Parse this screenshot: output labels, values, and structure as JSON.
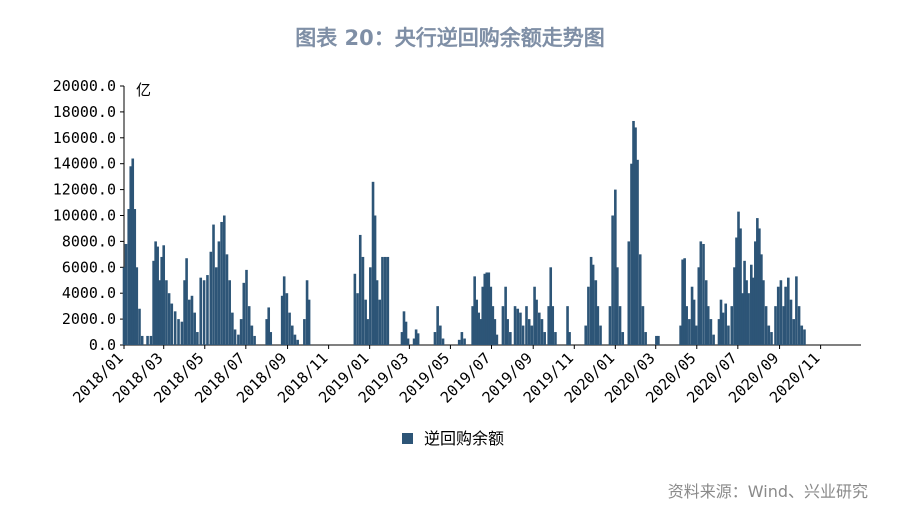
{
  "title": "图表 20：央行逆回购余额走势图",
  "source": "资料来源：Wind、兴业研究",
  "chart_data": {
    "type": "bar",
    "unit_label": "亿",
    "series_name": "逆回购余额",
    "color": "#2d5577",
    "ylim": [
      0,
      20000
    ],
    "y_ticks": [
      "0.0",
      "2000.0",
      "4000.0",
      "6000.0",
      "8000.0",
      "10000.0",
      "12000.0",
      "14000.0",
      "16000.0",
      "18000.0",
      "20000.0"
    ],
    "x_ticks": [
      "2018/01",
      "2018/03",
      "2018/05",
      "2018/07",
      "2018/09",
      "2018/11",
      "2019/01",
      "2019/03",
      "2019/05",
      "2019/07",
      "2019/09",
      "2019/11",
      "2020/01",
      "2020/03",
      "2020/05",
      "2020/07",
      "2020/09",
      "2020/11"
    ],
    "legend_position": "bottom",
    "x_start": "2018-01-01",
    "x_end": "2020-12-31",
    "points": [
      [
        "2018-01-01",
        6000
      ],
      [
        "2018-01-04",
        7800
      ],
      [
        "2018-01-08",
        10500
      ],
      [
        "2018-01-11",
        13800
      ],
      [
        "2018-01-14",
        14400
      ],
      [
        "2018-01-17",
        10500
      ],
      [
        "2018-01-20",
        6000
      ],
      [
        "2018-01-24",
        2800
      ],
      [
        "2018-01-28",
        700
      ],
      [
        "2018-02-05",
        700
      ],
      [
        "2018-02-10",
        700
      ],
      [
        "2018-02-14",
        6500
      ],
      [
        "2018-02-17",
        8000
      ],
      [
        "2018-02-20",
        7600
      ],
      [
        "2018-02-23",
        5000
      ],
      [
        "2018-02-26",
        6800
      ],
      [
        "2018-03-01",
        7700
      ],
      [
        "2018-03-05",
        5000
      ],
      [
        "2018-03-09",
        4000
      ],
      [
        "2018-03-13",
        3200
      ],
      [
        "2018-03-18",
        2600
      ],
      [
        "2018-03-23",
        2000
      ],
      [
        "2018-03-28",
        1800
      ],
      [
        "2018-04-01",
        5000
      ],
      [
        "2018-04-04",
        6700
      ],
      [
        "2018-04-08",
        3500
      ],
      [
        "2018-04-12",
        3800
      ],
      [
        "2018-04-16",
        2500
      ],
      [
        "2018-04-20",
        1000
      ],
      [
        "2018-04-25",
        5200
      ],
      [
        "2018-04-30",
        5000
      ],
      [
        "2018-05-05",
        5400
      ],
      [
        "2018-05-10",
        7200
      ],
      [
        "2018-05-14",
        9300
      ],
      [
        "2018-05-18",
        6000
      ],
      [
        "2018-05-22",
        8000
      ],
      [
        "2018-05-26",
        9500
      ],
      [
        "2018-05-30",
        10000
      ],
      [
        "2018-06-03",
        7000
      ],
      [
        "2018-06-07",
        5000
      ],
      [
        "2018-06-11",
        2500
      ],
      [
        "2018-06-15",
        1200
      ],
      [
        "2018-06-20",
        800
      ],
      [
        "2018-06-24",
        2000
      ],
      [
        "2018-06-28",
        4800
      ],
      [
        "2018-07-02",
        5800
      ],
      [
        "2018-07-06",
        3000
      ],
      [
        "2018-07-10",
        1500
      ],
      [
        "2018-07-14",
        700
      ],
      [
        "2018-08-01",
        2000
      ],
      [
        "2018-08-04",
        2900
      ],
      [
        "2018-08-07",
        1000
      ],
      [
        "2018-08-24",
        3800
      ],
      [
        "2018-08-27",
        5300
      ],
      [
        "2018-08-31",
        4000
      ],
      [
        "2018-09-04",
        2500
      ],
      [
        "2018-09-08",
        1500
      ],
      [
        "2018-09-12",
        800
      ],
      [
        "2018-09-16",
        400
      ],
      [
        "2018-09-26",
        2000
      ],
      [
        "2018-09-30",
        5000
      ],
      [
        "2018-10-03",
        3500
      ],
      [
        "2018-12-10",
        5500
      ],
      [
        "2018-12-14",
        4000
      ],
      [
        "2018-12-18",
        8500
      ],
      [
        "2018-12-22",
        6800
      ],
      [
        "2018-12-26",
        3500
      ],
      [
        "2018-12-29",
        2000
      ],
      [
        "2019-01-02",
        6000
      ],
      [
        "2019-01-06",
        12600
      ],
      [
        "2019-01-09",
        10000
      ],
      [
        "2019-01-12",
        5000
      ],
      [
        "2019-01-16",
        3500
      ],
      [
        "2019-01-20",
        6800
      ],
      [
        "2019-01-24",
        6800
      ],
      [
        "2019-01-28",
        6800
      ],
      [
        "2019-02-18",
        1000
      ],
      [
        "2019-02-21",
        2600
      ],
      [
        "2019-02-24",
        1800
      ],
      [
        "2019-02-27",
        500
      ],
      [
        "2019-03-08",
        500
      ],
      [
        "2019-03-11",
        1200
      ],
      [
        "2019-03-14",
        900
      ],
      [
        "2019-04-08",
        1000
      ],
      [
        "2019-04-12",
        3000
      ],
      [
        "2019-04-16",
        1500
      ],
      [
        "2019-04-20",
        500
      ],
      [
        "2019-05-14",
        400
      ],
      [
        "2019-05-18",
        1000
      ],
      [
        "2019-05-22",
        500
      ],
      [
        "2019-06-03",
        3000
      ],
      [
        "2019-06-06",
        5300
      ],
      [
        "2019-06-09",
        3500
      ],
      [
        "2019-06-12",
        2500
      ],
      [
        "2019-06-15",
        2000
      ],
      [
        "2019-06-18",
        4500
      ],
      [
        "2019-06-21",
        5500
      ],
      [
        "2019-06-24",
        5600
      ],
      [
        "2019-06-27",
        5600
      ],
      [
        "2019-06-30",
        4500
      ],
      [
        "2019-07-03",
        3000
      ],
      [
        "2019-07-06",
        2000
      ],
      [
        "2019-07-09",
        800
      ],
      [
        "2019-07-18",
        3000
      ],
      [
        "2019-07-22",
        4500
      ],
      [
        "2019-07-25",
        2000
      ],
      [
        "2019-07-29",
        1000
      ],
      [
        "2019-08-05",
        3000
      ],
      [
        "2019-08-09",
        2800
      ],
      [
        "2019-08-13",
        2500
      ],
      [
        "2019-08-17",
        1500
      ],
      [
        "2019-08-22",
        3000
      ],
      [
        "2019-08-26",
        2000
      ],
      [
        "2019-08-30",
        1500
      ],
      [
        "2019-09-03",
        4500
      ],
      [
        "2019-09-06",
        3500
      ],
      [
        "2019-09-10",
        2500
      ],
      [
        "2019-09-14",
        2000
      ],
      [
        "2019-09-18",
        1000
      ],
      [
        "2019-09-24",
        3000
      ],
      [
        "2019-09-27",
        6000
      ],
      [
        "2019-09-30",
        3000
      ],
      [
        "2019-10-04",
        1000
      ],
      [
        "2019-10-22",
        3000
      ],
      [
        "2019-10-25",
        1000
      ],
      [
        "2019-11-18",
        1500
      ],
      [
        "2019-11-22",
        4500
      ],
      [
        "2019-11-26",
        6800
      ],
      [
        "2019-11-29",
        6200
      ],
      [
        "2019-12-03",
        5000
      ],
      [
        "2019-12-06",
        3000
      ],
      [
        "2019-12-10",
        1500
      ],
      [
        "2019-12-24",
        3000
      ],
      [
        "2019-12-28",
        10000
      ],
      [
        "2020-01-01",
        12000
      ],
      [
        "2020-01-04",
        6000
      ],
      [
        "2020-01-08",
        3000
      ],
      [
        "2020-01-12",
        1000
      ],
      [
        "2020-01-21",
        8000
      ],
      [
        "2020-01-25",
        14000
      ],
      [
        "2020-01-28",
        17300
      ],
      [
        "2020-01-31",
        16800
      ],
      [
        "2020-02-03",
        14300
      ],
      [
        "2020-02-07",
        7000
      ],
      [
        "2020-02-11",
        3000
      ],
      [
        "2020-02-15",
        1000
      ],
      [
        "2020-03-02",
        700
      ],
      [
        "2020-03-05",
        700
      ],
      [
        "2020-04-07",
        1500
      ],
      [
        "2020-04-10",
        6600
      ],
      [
        "2020-04-13",
        6700
      ],
      [
        "2020-04-16",
        3000
      ],
      [
        "2020-04-20",
        2000
      ],
      [
        "2020-04-24",
        4500
      ],
      [
        "2020-04-27",
        3500
      ],
      [
        "2020-04-30",
        1500
      ],
      [
        "2020-05-04",
        6000
      ],
      [
        "2020-05-07",
        8000
      ],
      [
        "2020-05-11",
        7800
      ],
      [
        "2020-05-15",
        5000
      ],
      [
        "2020-05-18",
        3000
      ],
      [
        "2020-05-22",
        2000
      ],
      [
        "2020-05-26",
        800
      ],
      [
        "2020-06-03",
        2000
      ],
      [
        "2020-06-06",
        3500
      ],
      [
        "2020-06-09",
        2500
      ],
      [
        "2020-06-13",
        3200
      ],
      [
        "2020-06-17",
        1500
      ],
      [
        "2020-06-22",
        3000
      ],
      [
        "2020-06-26",
        6000
      ],
      [
        "2020-06-29",
        8300
      ],
      [
        "2020-07-02",
        10300
      ],
      [
        "2020-07-05",
        9000
      ],
      [
        "2020-07-08",
        4000
      ],
      [
        "2020-07-11",
        6500
      ],
      [
        "2020-07-14",
        5000
      ],
      [
        "2020-07-17",
        4000
      ],
      [
        "2020-07-21",
        6200
      ],
      [
        "2020-07-24",
        5200
      ],
      [
        "2020-07-27",
        8000
      ],
      [
        "2020-07-30",
        9800
      ],
      [
        "2020-08-02",
        9000
      ],
      [
        "2020-08-05",
        7000
      ],
      [
        "2020-08-08",
        5000
      ],
      [
        "2020-08-12",
        3000
      ],
      [
        "2020-08-16",
        1500
      ],
      [
        "2020-08-20",
        1000
      ],
      [
        "2020-08-26",
        3000
      ],
      [
        "2020-08-30",
        4500
      ],
      [
        "2020-09-03",
        5000
      ],
      [
        "2020-09-07",
        3000
      ],
      [
        "2020-09-10",
        4500
      ],
      [
        "2020-09-14",
        5200
      ],
      [
        "2020-09-18",
        3500
      ],
      [
        "2020-09-22",
        2000
      ],
      [
        "2020-09-26",
        5300
      ],
      [
        "2020-09-30",
        3000
      ],
      [
        "2020-10-04",
        1500
      ],
      [
        "2020-10-08",
        1200
      ]
    ]
  }
}
